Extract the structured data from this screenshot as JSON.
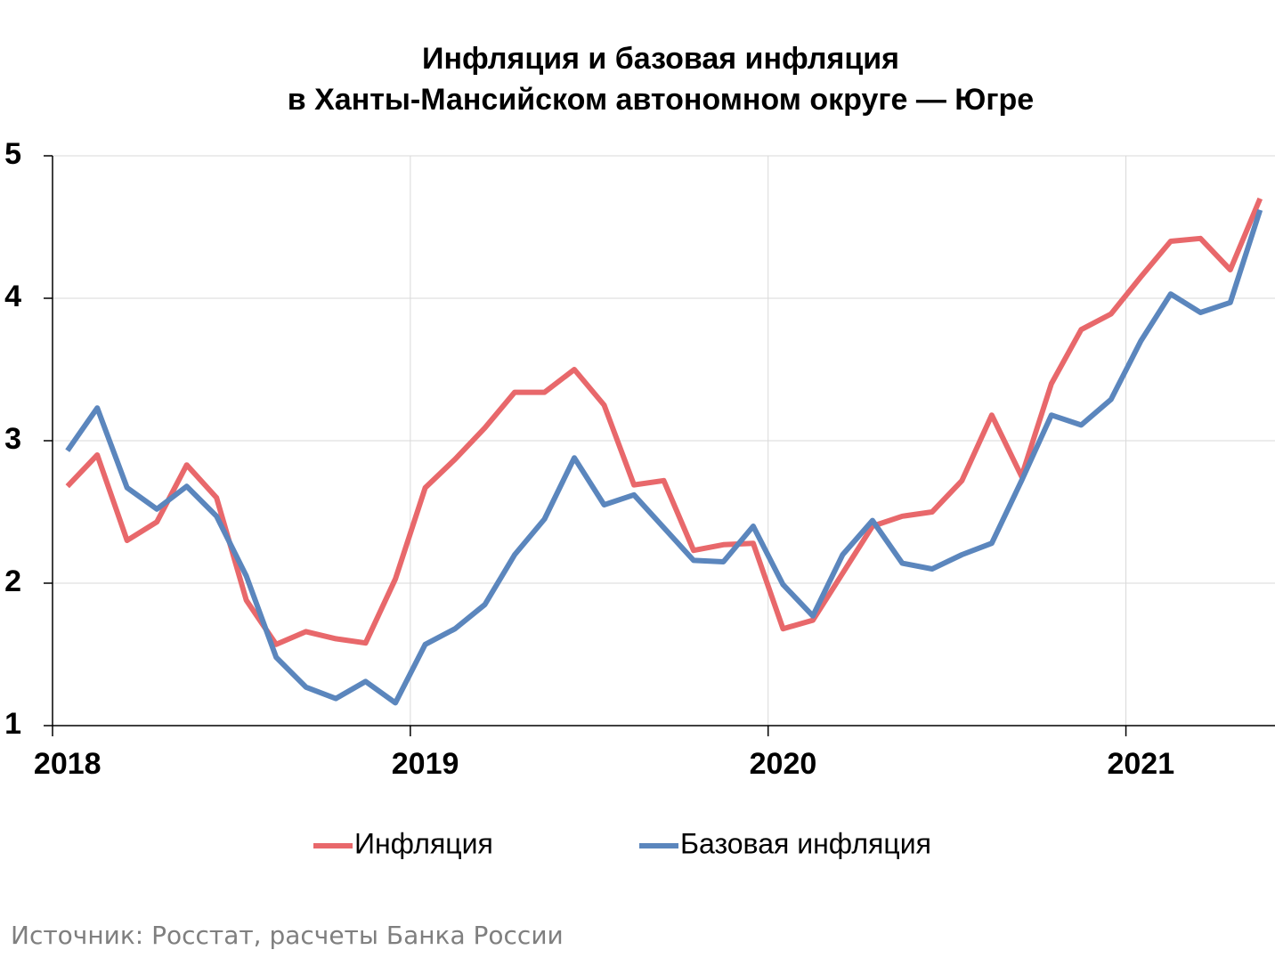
{
  "chart_data": {
    "type": "line",
    "title": [
      "Инфляция и базовая инфляция",
      "в  Ханты-Мансийском автономном округе — Югре"
    ],
    "source": "Источник: Росстат, расчеты Банка России",
    "categories": [
      "2018",
      null,
      null,
      null,
      null,
      null,
      null,
      null,
      null,
      null,
      null,
      null,
      "2019",
      null,
      null,
      null,
      null,
      null,
      null,
      null,
      null,
      null,
      null,
      null,
      "2020",
      null,
      null,
      null,
      null,
      null,
      null,
      null,
      null,
      null,
      null,
      null,
      "2021",
      null,
      null,
      null,
      null
    ],
    "series": [
      {
        "name": "Инфляция",
        "color": "#e8686b",
        "values": [
          2.68,
          2.9,
          2.3,
          2.43,
          2.83,
          2.6,
          1.88,
          1.57,
          1.66,
          1.61,
          1.58,
          2.03,
          2.67,
          2.87,
          3.09,
          3.34,
          3.34,
          3.5,
          3.25,
          2.69,
          2.72,
          2.23,
          2.27,
          2.28,
          1.68,
          1.74,
          2.07,
          2.4,
          2.47,
          2.5,
          2.72,
          3.18,
          2.75,
          3.4,
          3.78,
          3.89,
          4.15,
          4.4,
          4.42,
          4.2,
          4.7
        ]
      },
      {
        "name": "Базовая инфляция",
        "color": "#5b86bd",
        "values": [
          2.93,
          3.23,
          2.67,
          2.52,
          2.68,
          2.47,
          2.05,
          1.48,
          1.27,
          1.19,
          1.31,
          1.16,
          1.57,
          1.68,
          1.85,
          2.2,
          2.45,
          2.88,
          2.55,
          2.62,
          2.39,
          2.16,
          2.15,
          2.4,
          1.99,
          1.77,
          2.2,
          2.44,
          2.14,
          2.1,
          2.2,
          2.28,
          2.72,
          3.18,
          3.11,
          3.29,
          3.7,
          4.03,
          3.9,
          3.97,
          4.62
        ]
      }
    ],
    "ylim": [
      1,
      5
    ],
    "yticks": [
      1,
      2,
      3,
      4,
      5
    ],
    "grid": true
  }
}
